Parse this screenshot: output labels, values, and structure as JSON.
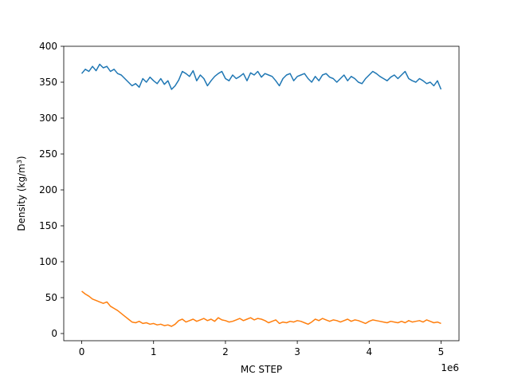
{
  "chart_data": {
    "type": "line",
    "title": "",
    "xlabel": "MC STEP",
    "ylabel_main": "Density (kg/m",
    "ylabel_sup": "3",
    "ylabel_close": ")",
    "x_offset_label": "1e6",
    "xlim": [
      -250000,
      5250000
    ],
    "ylim": [
      -10,
      400
    ],
    "x_ticks": [
      0,
      1000000,
      2000000,
      3000000,
      4000000,
      5000000
    ],
    "x_tick_labels": [
      "0",
      "1",
      "2",
      "3",
      "4",
      "5"
    ],
    "y_ticks": [
      0,
      50,
      100,
      150,
      200,
      250,
      300,
      350,
      400
    ],
    "y_tick_labels": [
      "0",
      "50",
      "100",
      "150",
      "200",
      "250",
      "300",
      "350",
      "400"
    ],
    "grid": false,
    "series": [
      {
        "color": "#1f77b4",
        "x": [
          0,
          50000,
          100000,
          150000,
          200000,
          250000,
          300000,
          350000,
          400000,
          450000,
          500000,
          550000,
          600000,
          650000,
          700000,
          750000,
          800000,
          850000,
          900000,
          950000,
          1000000,
          1050000,
          1100000,
          1150000,
          1200000,
          1250000,
          1300000,
          1350000,
          1400000,
          1450000,
          1500000,
          1550000,
          1600000,
          1650000,
          1700000,
          1750000,
          1800000,
          1850000,
          1900000,
          1950000,
          2000000,
          2050000,
          2100000,
          2150000,
          2200000,
          2250000,
          2300000,
          2350000,
          2400000,
          2450000,
          2500000,
          2550000,
          2600000,
          2650000,
          2700000,
          2750000,
          2800000,
          2850000,
          2900000,
          2950000,
          3000000,
          3050000,
          3100000,
          3150000,
          3200000,
          3250000,
          3300000,
          3350000,
          3400000,
          3450000,
          3500000,
          3550000,
          3600000,
          3650000,
          3700000,
          3750000,
          3800000,
          3850000,
          3900000,
          3950000,
          4000000,
          4050000,
          4100000,
          4150000,
          4200000,
          4250000,
          4300000,
          4350000,
          4400000,
          4450000,
          4500000,
          4550000,
          4600000,
          4650000,
          4700000,
          4750000,
          4800000,
          4850000,
          4900000,
          4950000,
          5000000
        ],
        "y": [
          362,
          368,
          365,
          372,
          366,
          375,
          370,
          372,
          365,
          368,
          362,
          360,
          355,
          350,
          345,
          348,
          343,
          355,
          350,
          357,
          352,
          348,
          355,
          347,
          352,
          340,
          345,
          353,
          365,
          362,
          358,
          366,
          352,
          360,
          355,
          345,
          352,
          358,
          362,
          365,
          355,
          352,
          360,
          355,
          358,
          362,
          352,
          363,
          360,
          365,
          357,
          362,
          360,
          358,
          352,
          345,
          355,
          360,
          362,
          352,
          358,
          360,
          362,
          355,
          350,
          358,
          352,
          360,
          362,
          357,
          355,
          350,
          355,
          360,
          352,
          358,
          355,
          350,
          348,
          355,
          360,
          365,
          362,
          358,
          355,
          352,
          357,
          360,
          355,
          360,
          365,
          355,
          352,
          350,
          355,
          352,
          348,
          350,
          345,
          352,
          340
        ]
      },
      {
        "color": "#ff7f0e",
        "x": [
          0,
          50000,
          100000,
          150000,
          200000,
          250000,
          300000,
          350000,
          400000,
          450000,
          500000,
          550000,
          600000,
          650000,
          700000,
          750000,
          800000,
          850000,
          900000,
          950000,
          1000000,
          1050000,
          1100000,
          1150000,
          1200000,
          1250000,
          1300000,
          1350000,
          1400000,
          1450000,
          1500000,
          1550000,
          1600000,
          1650000,
          1700000,
          1750000,
          1800000,
          1850000,
          1900000,
          1950000,
          2000000,
          2050000,
          2100000,
          2150000,
          2200000,
          2250000,
          2300000,
          2350000,
          2400000,
          2450000,
          2500000,
          2550000,
          2600000,
          2650000,
          2700000,
          2750000,
          2800000,
          2850000,
          2900000,
          2950000,
          3000000,
          3050000,
          3100000,
          3150000,
          3200000,
          3250000,
          3300000,
          3350000,
          3400000,
          3450000,
          3500000,
          3550000,
          3600000,
          3650000,
          3700000,
          3750000,
          3800000,
          3850000,
          3900000,
          3950000,
          4000000,
          4050000,
          4100000,
          4150000,
          4200000,
          4250000,
          4300000,
          4350000,
          4400000,
          4450000,
          4500000,
          4550000,
          4600000,
          4650000,
          4700000,
          4750000,
          4800000,
          4850000,
          4900000,
          4950000,
          5000000
        ],
        "y": [
          59,
          55,
          52,
          48,
          46,
          44,
          42,
          44,
          38,
          35,
          32,
          28,
          24,
          20,
          16,
          15,
          17,
          14,
          15,
          13,
          14,
          12,
          13,
          11,
          12,
          10,
          13,
          18,
          20,
          16,
          18,
          20,
          17,
          19,
          21,
          18,
          20,
          17,
          22,
          19,
          18,
          16,
          17,
          19,
          21,
          18,
          20,
          22,
          19,
          21,
          20,
          18,
          15,
          17,
          19,
          14,
          16,
          15,
          17,
          16,
          18,
          17,
          15,
          13,
          16,
          20,
          18,
          21,
          19,
          17,
          19,
          18,
          16,
          18,
          20,
          17,
          19,
          18,
          16,
          14,
          17,
          19,
          18,
          17,
          16,
          15,
          17,
          16,
          15,
          17,
          15,
          18,
          16,
          17,
          18,
          16,
          19,
          17,
          15,
          16,
          14
        ]
      }
    ]
  }
}
